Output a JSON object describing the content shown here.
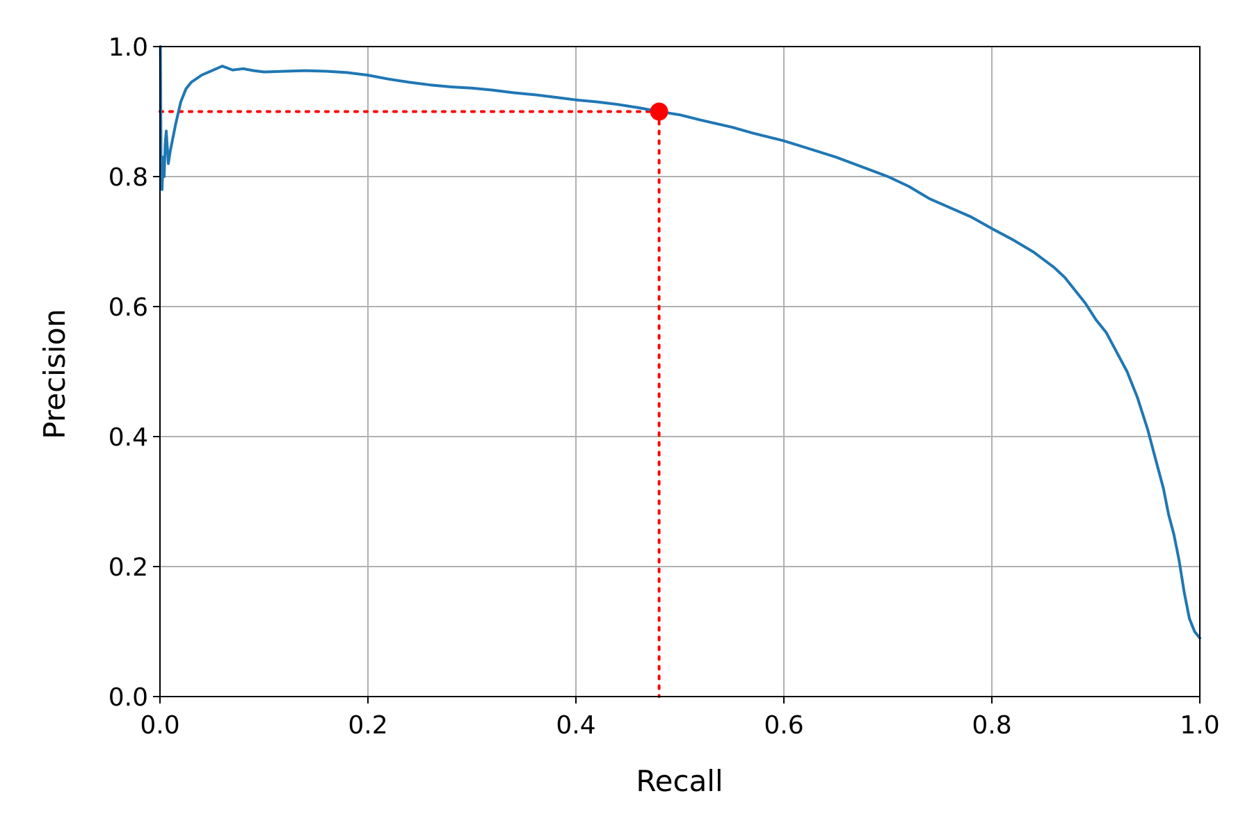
{
  "chart_data": {
    "type": "line",
    "title": "",
    "xlabel": "Recall",
    "ylabel": "Precision",
    "xlim": [
      0.0,
      1.0
    ],
    "ylim": [
      0.0,
      1.0
    ],
    "xticks": [
      0.0,
      0.2,
      0.4,
      0.6,
      0.8,
      1.0
    ],
    "yticks": [
      0.0,
      0.2,
      0.4,
      0.6,
      0.8,
      1.0
    ],
    "xtick_labels": [
      "0.0",
      "0.2",
      "0.4",
      "0.6",
      "0.8",
      "1.0"
    ],
    "ytick_labels": [
      "0.0",
      "0.2",
      "0.4",
      "0.6",
      "0.8",
      "1.0"
    ],
    "grid": true,
    "legend": "none",
    "series": [
      {
        "color": "#1f77b4",
        "x": [
          1.0,
          0.995,
          0.99,
          0.985,
          0.98,
          0.975,
          0.97,
          0.965,
          0.96,
          0.955,
          0.95,
          0.94,
          0.93,
          0.92,
          0.91,
          0.9,
          0.89,
          0.88,
          0.87,
          0.86,
          0.85,
          0.84,
          0.82,
          0.8,
          0.78,
          0.76,
          0.74,
          0.72,
          0.7,
          0.68,
          0.65,
          0.62,
          0.6,
          0.57,
          0.55,
          0.52,
          0.5,
          0.48,
          0.46,
          0.44,
          0.42,
          0.4,
          0.38,
          0.36,
          0.34,
          0.32,
          0.3,
          0.28,
          0.26,
          0.24,
          0.22,
          0.2,
          0.18,
          0.16,
          0.14,
          0.12,
          0.1,
          0.09,
          0.08,
          0.07,
          0.06,
          0.05,
          0.04,
          0.03,
          0.025,
          0.02,
          0.015,
          0.01,
          0.008,
          0.006,
          0.005,
          0.004,
          0.003,
          0.002,
          0.001,
          0.0005
        ],
        "y": [
          0.09,
          0.1,
          0.12,
          0.16,
          0.21,
          0.25,
          0.28,
          0.32,
          0.35,
          0.38,
          0.41,
          0.46,
          0.5,
          0.53,
          0.56,
          0.58,
          0.605,
          0.625,
          0.645,
          0.66,
          0.672,
          0.684,
          0.703,
          0.72,
          0.738,
          0.752,
          0.766,
          0.785,
          0.8,
          0.812,
          0.83,
          0.845,
          0.855,
          0.867,
          0.876,
          0.887,
          0.895,
          0.9,
          0.906,
          0.911,
          0.915,
          0.918,
          0.922,
          0.926,
          0.929,
          0.933,
          0.936,
          0.938,
          0.941,
          0.945,
          0.95,
          0.956,
          0.96,
          0.962,
          0.963,
          0.962,
          0.961,
          0.963,
          0.966,
          0.964,
          0.97,
          0.963,
          0.956,
          0.945,
          0.935,
          0.915,
          0.88,
          0.84,
          0.82,
          0.87,
          0.85,
          0.8,
          0.83,
          0.78,
          0.82,
          1.0
        ]
      }
    ],
    "highlight": {
      "color": "#ff0000",
      "x": 0.48,
      "y": 0.9,
      "line_style": "dotted"
    }
  }
}
